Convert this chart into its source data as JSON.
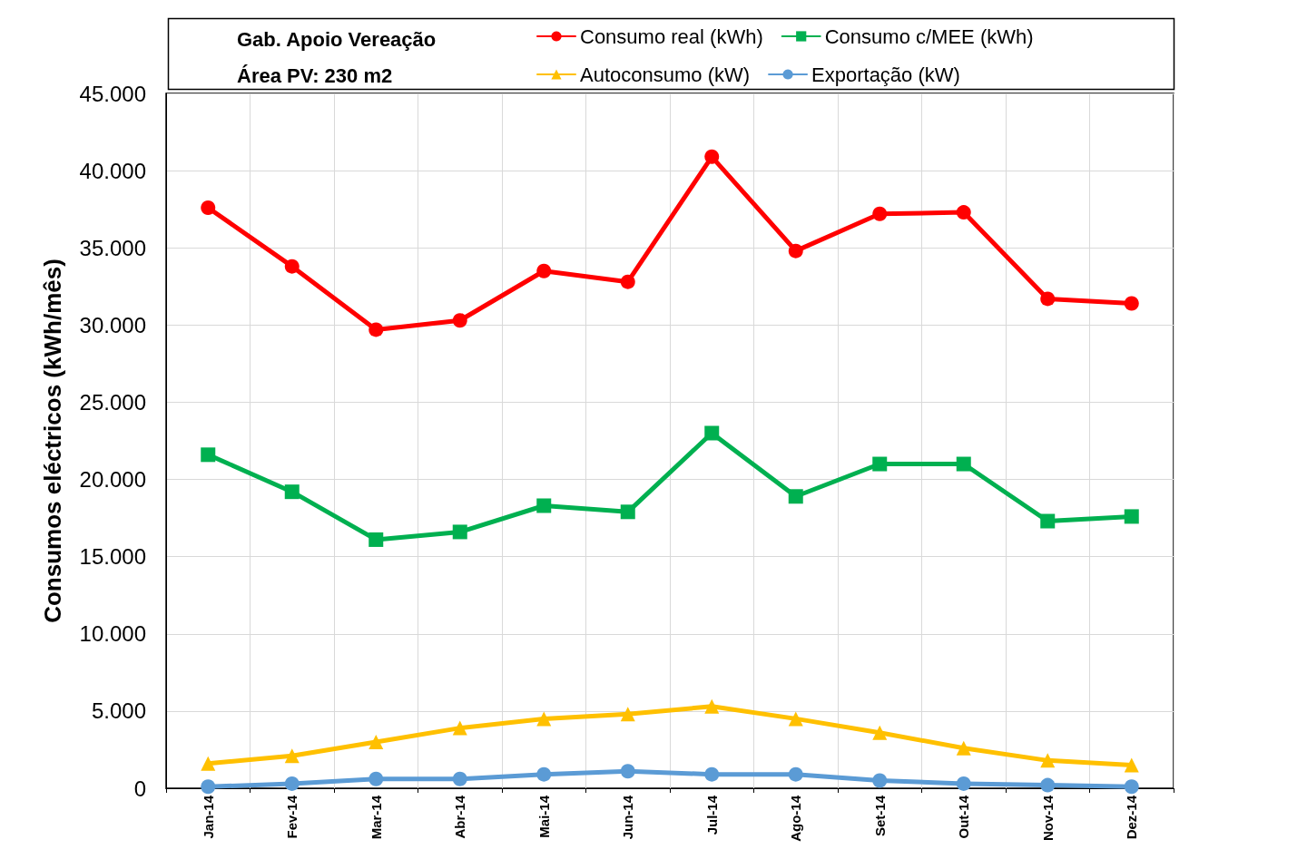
{
  "chart_data": {
    "type": "line",
    "title": "Gab. Apoio Vereação",
    "subtitle": "Área PV: 230 m2",
    "ylabel": "Consumos eléctricos (kWh/mês)",
    "categories": [
      "Jan-14",
      "Fev-14",
      "Mar-14",
      "Abr-14",
      "Mai-14",
      "Jun-14",
      "Jul-14",
      "Ago-14",
      "Set-14",
      "Out-14",
      "Nov-14",
      "Dez-14"
    ],
    "series": [
      {
        "name": "Consumo real (kWh)",
        "color": "#ff0000",
        "marker": "circle",
        "values": [
          37600,
          33800,
          29700,
          30300,
          33500,
          32800,
          40900,
          34800,
          37200,
          37300,
          31700,
          31400
        ]
      },
      {
        "name": "Consumo c/MEE (kWh)",
        "color": "#00b050",
        "marker": "square",
        "values": [
          21600,
          19200,
          16100,
          16600,
          18300,
          17900,
          23000,
          18900,
          21000,
          21000,
          17300,
          17600
        ]
      },
      {
        "name": "Autoconsumo (kW)",
        "color": "#ffc000",
        "marker": "triangle",
        "values": [
          1600,
          2100,
          3000,
          3900,
          4500,
          4800,
          5300,
          4500,
          3600,
          2600,
          1800,
          1500
        ]
      },
      {
        "name": "Exportação (kW)",
        "color": "#5b9bd5",
        "marker": "circle",
        "values": [
          100,
          300,
          600,
          600,
          900,
          1100,
          900,
          900,
          500,
          300,
          200,
          100
        ]
      }
    ],
    "ylim": [
      0,
      45000
    ],
    "yticks": [
      {
        "value": 0,
        "label": "0"
      },
      {
        "value": 5000,
        "label": "5.000"
      },
      {
        "value": 10000,
        "label": "10.000"
      },
      {
        "value": 15000,
        "label": "15.000"
      },
      {
        "value": 20000,
        "label": "20.000"
      },
      {
        "value": 25000,
        "label": "25.000"
      },
      {
        "value": 30000,
        "label": "30.000"
      },
      {
        "value": 35000,
        "label": "35.000"
      },
      {
        "value": 40000,
        "label": "40.000"
      },
      {
        "value": 45000,
        "label": "45.000"
      }
    ],
    "grid": true,
    "legend": "top",
    "line_style": "solid"
  }
}
